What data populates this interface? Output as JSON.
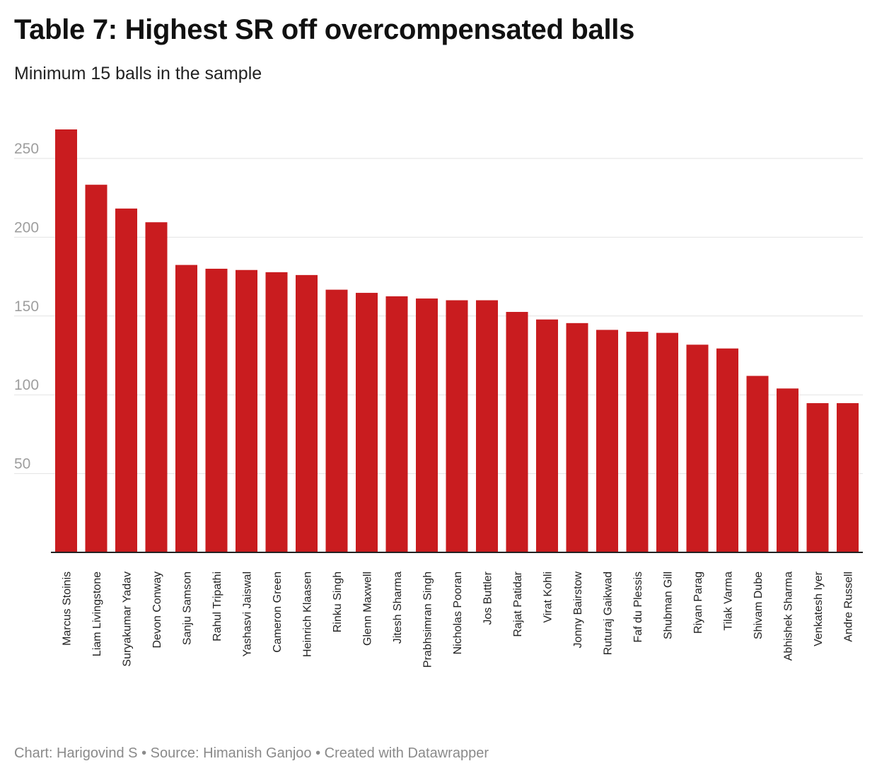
{
  "header": {
    "title": "Table 7: Highest SR off overcompensated balls",
    "subtitle": "Minimum 15 balls in the sample"
  },
  "footer": {
    "credit": "Chart: Harigovind S • Source: Himanish Ganjoo • Created with Datawrapper"
  },
  "colors": {
    "bar": "#c91c1f",
    "grid": "#e3e3e3",
    "axis": "#222222"
  },
  "chart_data": {
    "type": "bar",
    "title": "Table 7: Highest SR off overcompensated balls",
    "subtitle": "Minimum 15 balls in the sample",
    "xlabel": "",
    "ylabel": "",
    "ylim": [
      0,
      270
    ],
    "yticks": [
      50,
      100,
      150,
      200,
      250
    ],
    "grid": true,
    "categories": [
      "Marcus Stoinis",
      "Liam Livingstone",
      "Suryakumar Yadav",
      "Devon Conway",
      "Sanju Samson",
      "Rahul Tripathi",
      "Yashasvi Jaiswal",
      "Cameron Green",
      "Heinrich Klaasen",
      "Rinku Singh",
      "Glenn Maxwell",
      "Jitesh Sharma",
      "Prabhsimran Singh",
      "Nicholas Pooran",
      "Jos Buttler",
      "Rajat Patidar",
      "Virat Kohli",
      "Jonny Bairstow",
      "Ruturaj Gaikwad",
      "Faf du Plessis",
      "Shubman Gill",
      "Riyan Parag",
      "Tilak Varma",
      "Shivam Dube",
      "Abhishek Sharma",
      "Venkatesh Iyer",
      "Andre Russell"
    ],
    "values": [
      268.4,
      233.3,
      218.2,
      209.5,
      182.4,
      180.0,
      179.2,
      177.8,
      176.0,
      166.7,
      164.7,
      162.5,
      161.1,
      160.0,
      160.0,
      152.6,
      147.8,
      145.5,
      141.2,
      140.0,
      139.3,
      131.8,
      129.4,
      112.0,
      104.0,
      94.7,
      94.7
    ]
  }
}
